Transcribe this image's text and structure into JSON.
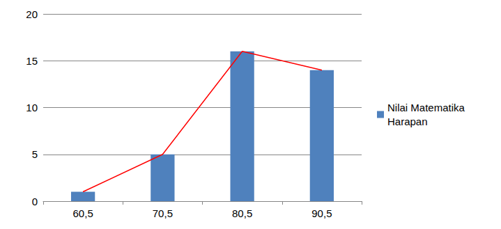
{
  "chart_data": {
    "type": "bar",
    "categories": [
      "60,5",
      "70,5",
      "80,5",
      "90,5"
    ],
    "series": [
      {
        "name": "Nilai Matematika Harapan",
        "type": "bar",
        "color": "#4f81bd",
        "values": [
          1,
          5,
          16,
          14
        ]
      },
      {
        "type": "line",
        "color": "#ff0000",
        "values": [
          1,
          5,
          16,
          14
        ]
      }
    ],
    "ylim": [
      0,
      20
    ],
    "yticks": [
      0,
      5,
      10,
      15,
      20
    ],
    "grid": true,
    "legend": "right"
  }
}
